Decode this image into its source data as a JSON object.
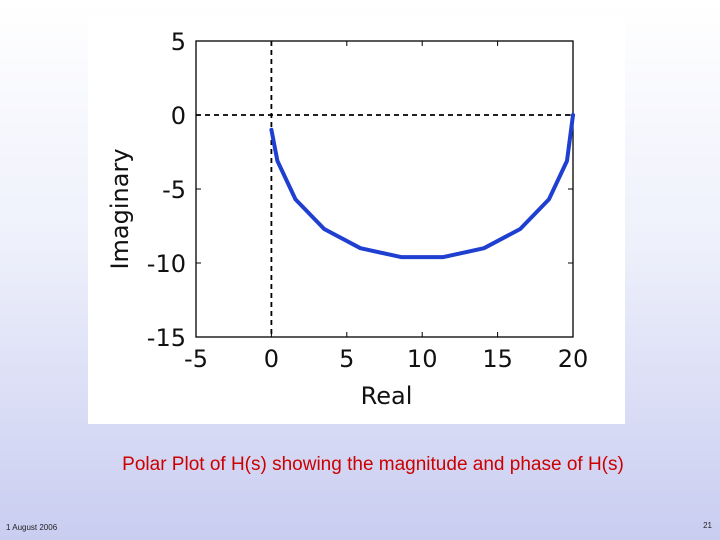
{
  "slide": {
    "caption": "Polar Plot of H(s) showing the magnitude and phase of H(s)",
    "footer_date": "1 August 2006",
    "page_number": "21"
  },
  "colors": {
    "curve": "#1f3fd0",
    "caption": "#cc0000",
    "axes": "#000000"
  },
  "chart_data": {
    "type": "line",
    "title": "",
    "xlabel": "Real",
    "ylabel": "Imaginary",
    "xlim": [
      -5,
      20
    ],
    "ylim": [
      -15,
      5
    ],
    "xticks": [
      -5,
      0,
      5,
      10,
      15,
      20
    ],
    "yticks": [
      5,
      0,
      -5,
      -10,
      -15
    ],
    "xtick_labels": [
      "-5",
      "0",
      "5",
      "10",
      "15",
      "20"
    ],
    "ytick_labels": [
      "5",
      "0",
      "-5",
      "-10",
      "-15"
    ],
    "grid": false,
    "reference_lines": {
      "x": 0,
      "y": 0,
      "style": "dashed"
    },
    "series": [
      {
        "x": [
          0.0,
          0.4,
          1.6,
          3.5,
          5.9,
          8.6,
          11.4,
          14.1,
          16.5,
          18.4,
          19.6,
          20.0
        ],
        "y": [
          -1.0,
          -3.1,
          -5.7,
          -7.7,
          -9.0,
          -9.6,
          -9.6,
          -9.0,
          -7.7,
          -5.7,
          -3.1,
          0.0
        ]
      }
    ]
  }
}
